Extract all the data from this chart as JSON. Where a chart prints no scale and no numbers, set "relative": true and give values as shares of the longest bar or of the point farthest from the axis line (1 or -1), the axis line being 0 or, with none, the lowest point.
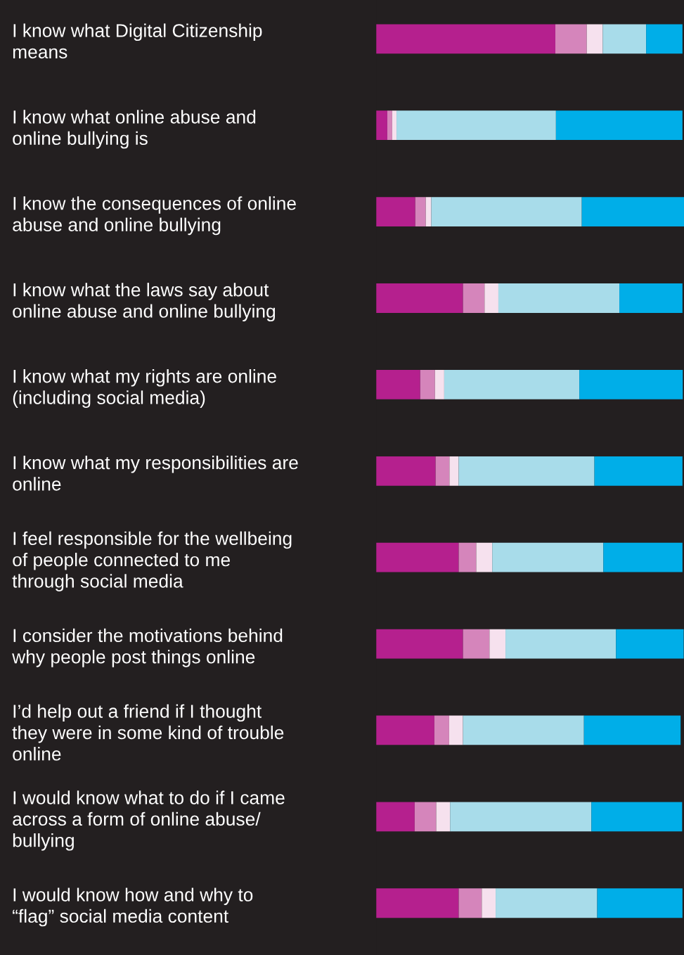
{
  "chart_data": {
    "type": "bar",
    "orientation": "horizontal",
    "stacked": true,
    "relative": true,
    "categories": [
      "I know what Digital Citizenship\nmeans",
      "I know what online abuse and\nonline bullying is",
      "I know the consequences of online\nabuse and online bullying",
      "I know what the laws say about\nonline abuse and online bullying",
      "I know what my rights are online\n(including social media)",
      "I know what my responsibilities are\nonline",
      "I feel responsible for the wellbeing\nof people connected to me\nthrough social media",
      "I consider the motivations behind\nwhy people post things online",
      "I’d help out a friend if I thought\nthey were in some kind of trouble\nonline",
      "I would know what to do if I came\nacross a form of online abuse/\nbullying",
      "I would know how and why to\n“flag” social media content"
    ],
    "series": [
      {
        "color": "#b5208e",
        "values": [
          0.582,
          0.036,
          0.127,
          0.282,
          0.143,
          0.193,
          0.268,
          0.282,
          0.189,
          0.125,
          0.268
        ]
      },
      {
        "color": "#d585bb",
        "values": [
          0.102,
          0.016,
          0.034,
          0.07,
          0.048,
          0.045,
          0.057,
          0.086,
          0.048,
          0.07,
          0.075
        ]
      },
      {
        "color": "#f6e1ee",
        "values": [
          0.052,
          0.014,
          0.018,
          0.045,
          0.03,
          0.03,
          0.052,
          0.052,
          0.045,
          0.045,
          0.045
        ]
      },
      {
        "color": "#a8dcea",
        "values": [
          0.141,
          0.518,
          0.489,
          0.393,
          0.439,
          0.441,
          0.361,
          0.359,
          0.393,
          0.459,
          0.33
        ]
      },
      {
        "color": "#00aee8",
        "values": [
          0.118,
          0.411,
          0.332,
          0.205,
          0.336,
          0.286,
          0.257,
          0.22,
          0.314,
          0.295,
          0.277
        ]
      }
    ]
  }
}
